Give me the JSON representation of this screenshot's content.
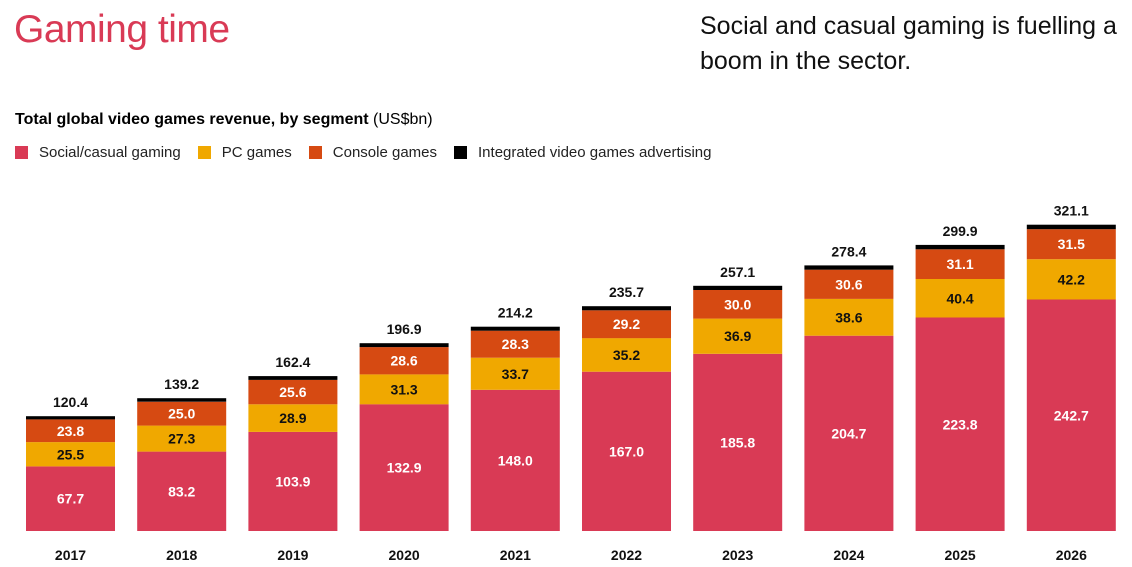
{
  "header": {
    "headline": "Gaming time",
    "tagline": "Social and casual gaming is fuelling a boom in the sector."
  },
  "chart_data": {
    "type": "bar",
    "stacked": true,
    "title": "Total global video games revenue, by segment",
    "unit": "(US$bn)",
    "categories": [
      "2017",
      "2018",
      "2019",
      "2020",
      "2021",
      "2022",
      "2023",
      "2024",
      "2025",
      "2026"
    ],
    "series": [
      {
        "name": "Social/casual gaming",
        "color": "#d93a55",
        "values": [
          67.7,
          83.2,
          103.9,
          132.9,
          148.0,
          167.0,
          185.8,
          204.7,
          223.8,
          242.7
        ],
        "labels": [
          "67.7",
          "83.2",
          "103.9",
          "132.9",
          "148.0",
          "167.0",
          "185.8",
          "204.7",
          "223.8",
          "242.7"
        ],
        "label_color": "#ffffff"
      },
      {
        "name": "PC games",
        "color": "#f0a800",
        "values": [
          25.5,
          27.3,
          28.9,
          31.3,
          33.7,
          35.2,
          36.9,
          38.6,
          40.4,
          42.2
        ],
        "labels": [
          "25.5",
          "27.3",
          "28.9",
          "31.3",
          "33.7",
          "35.2",
          "36.9",
          "38.6",
          "40.4",
          "42.2"
        ],
        "label_color": "#111111"
      },
      {
        "name": "Console games",
        "color": "#d64a12",
        "values": [
          23.8,
          25.0,
          25.6,
          28.6,
          28.3,
          29.2,
          30.0,
          30.6,
          31.1,
          31.5
        ],
        "labels": [
          "23.8",
          "25.0",
          "25.6",
          "28.6",
          "28.3",
          "29.2",
          "30.0",
          "30.6",
          "31.1",
          "31.5"
        ],
        "label_color": "#ffffff"
      },
      {
        "name": "Integrated video games advertising",
        "color": "#000000",
        "values": [
          3.4,
          3.7,
          4.0,
          4.1,
          4.2,
          4.3,
          4.4,
          4.5,
          4.6,
          4.7
        ],
        "labels": [],
        "label_color": "#ffffff"
      }
    ],
    "totals": [
      "120.4",
      "139.2",
      "162.4",
      "196.9",
      "214.2",
      "235.7",
      "257.1",
      "278.4",
      "299.9",
      "321.1"
    ],
    "ylim": [
      0,
      325
    ],
    "grid": false,
    "legend_position": "top-left",
    "colors": {
      "social_casual": "#d93a55",
      "pc_games": "#f0a800",
      "console_games": "#d64a12",
      "advertising": "#000000"
    }
  }
}
